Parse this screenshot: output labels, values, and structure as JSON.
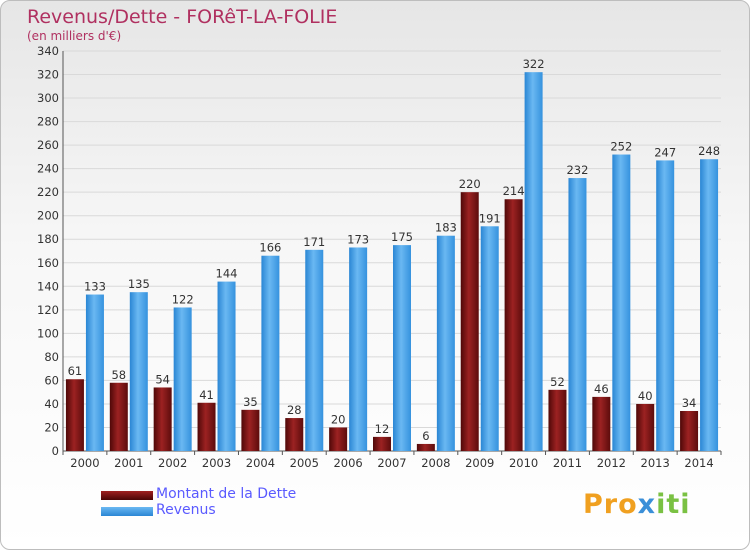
{
  "chart_data": {
    "type": "bar",
    "title": "Revenus/Dette - FORêT-LA-FOLIE",
    "subtitle": "(en milliers d'€)",
    "categories": [
      "2000",
      "2001",
      "2002",
      "2003",
      "2004",
      "2005",
      "2006",
      "2007",
      "2008",
      "2009",
      "2010",
      "2011",
      "2012",
      "2013",
      "2014"
    ],
    "series": [
      {
        "name": "Montant de la Dette",
        "color": "#7a1212",
        "values": [
          61,
          58,
          54,
          41,
          35,
          28,
          20,
          12,
          6,
          220,
          214,
          52,
          46,
          40,
          34
        ]
      },
      {
        "name": "Revenus",
        "color": "#3d9be6",
        "values": [
          133,
          135,
          122,
          144,
          166,
          171,
          173,
          175,
          183,
          191,
          322,
          232,
          252,
          247,
          248
        ]
      }
    ],
    "ylim": [
      0,
      340
    ],
    "yticks": [
      0,
      20,
      40,
      60,
      80,
      100,
      120,
      140,
      160,
      180,
      200,
      220,
      240,
      260,
      280,
      300,
      320,
      340
    ],
    "grid": true,
    "legend": "bottom-left"
  },
  "logo": {
    "part1": "Pro",
    "part2": "x",
    "part3": "iti"
  }
}
